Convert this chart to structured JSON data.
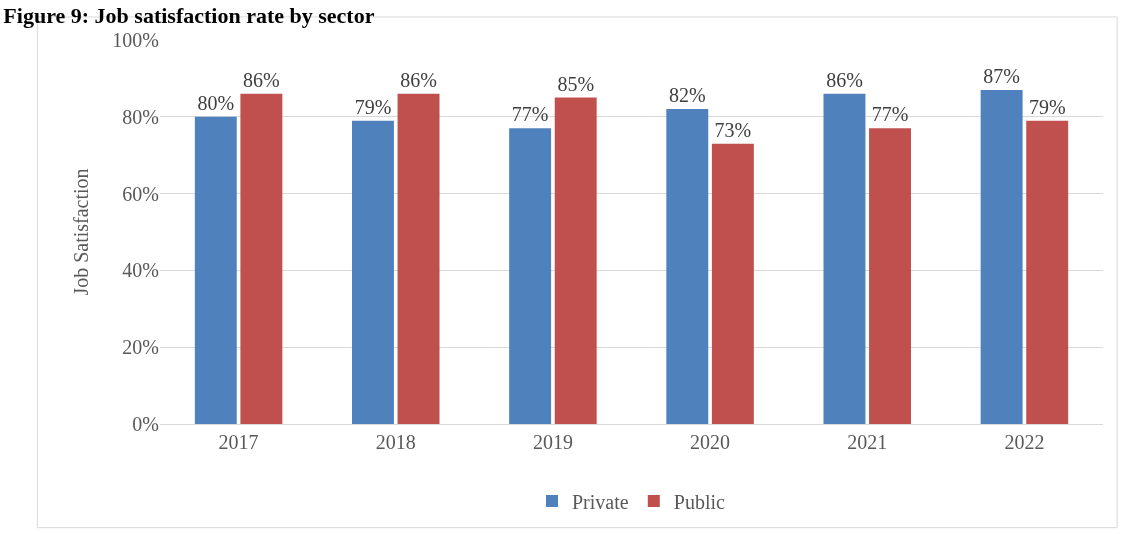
{
  "chart_data": {
    "type": "bar",
    "title": "Figure 9: Job satisfaction rate by sector",
    "ylabel": "Job Satisfaction",
    "categories": [
      "2017",
      "2018",
      "2019",
      "2020",
      "2021",
      "2022"
    ],
    "series": [
      {
        "name": "Private",
        "color": "#4f81bd",
        "values": [
          80,
          79,
          77,
          82,
          86,
          87
        ],
        "value_labels": [
          "80%",
          "79%",
          "77%",
          "82%",
          "86%",
          "87%"
        ]
      },
      {
        "name": "Public",
        "color": "#c0504d",
        "values": [
          86,
          86,
          85,
          73,
          77,
          79
        ],
        "value_labels": [
          "86%",
          "86%",
          "85%",
          "73%",
          "77%",
          "79%"
        ]
      }
    ],
    "ylim": [
      0,
      100
    ],
    "yticks": [
      {
        "value": 0,
        "label": "0%"
      },
      {
        "value": 20,
        "label": "20%"
      },
      {
        "value": 40,
        "label": "40%"
      },
      {
        "value": 60,
        "label": "60%"
      },
      {
        "value": 80,
        "label": "80%"
      },
      {
        "value": 100,
        "label": "100%"
      }
    ],
    "grid": "y",
    "legend": "bottom"
  }
}
